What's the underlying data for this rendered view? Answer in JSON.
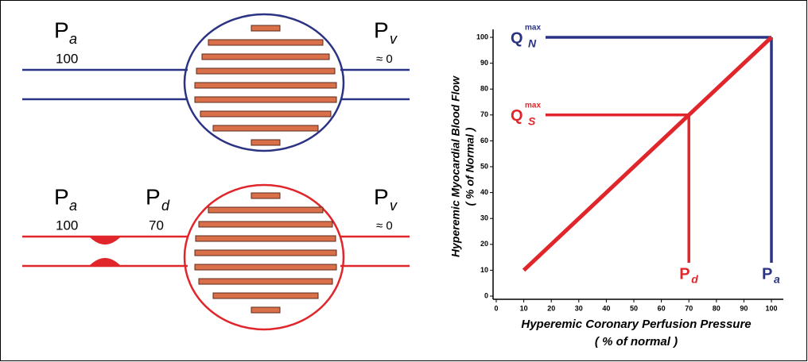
{
  "diagram": {
    "top": {
      "pa": {
        "label": "P",
        "sub": "a",
        "value": "100"
      },
      "pv": {
        "label": "P",
        "sub": "v",
        "value": "≈ 0"
      }
    },
    "bottom": {
      "pa": {
        "label": "P",
        "sub": "a",
        "value": "100"
      },
      "pd": {
        "label": "P",
        "sub": "d",
        "value": "70"
      },
      "pv": {
        "label": "P",
        "sub": "v",
        "value": "≈ 0"
      }
    }
  },
  "chart_data": {
    "type": "line",
    "y_label": [
      "Hyperemic Myocardial Blood Flow",
      "( % of Normal )"
    ],
    "x_label": [
      "Hyperemic Coronary Perfusion Pressure",
      "( % of normal )"
    ],
    "x": [
      10,
      100
    ],
    "series": [
      {
        "color": "#e0262b",
        "values": [
          10,
          100
        ]
      }
    ],
    "reference_lines": [
      {
        "label": "Q",
        "sub": "N",
        "sup": "max",
        "x_label": "P",
        "x_sub": "a",
        "color": "#2b3484",
        "x": 100,
        "y": 100
      },
      {
        "label": "Q",
        "sub": "S",
        "sup": "max",
        "x_label": "P",
        "x_sub": "d",
        "color": "#e0262b",
        "x": 70,
        "y": 70
      }
    ],
    "xlim": [
      0,
      100
    ],
    "ylim": [
      0,
      100
    ],
    "xticks": [
      0,
      10,
      20,
      30,
      40,
      50,
      60,
      70,
      80,
      90,
      100
    ],
    "yticks": [
      0,
      10,
      20,
      30,
      40,
      50,
      60,
      70,
      80,
      90,
      100
    ]
  }
}
